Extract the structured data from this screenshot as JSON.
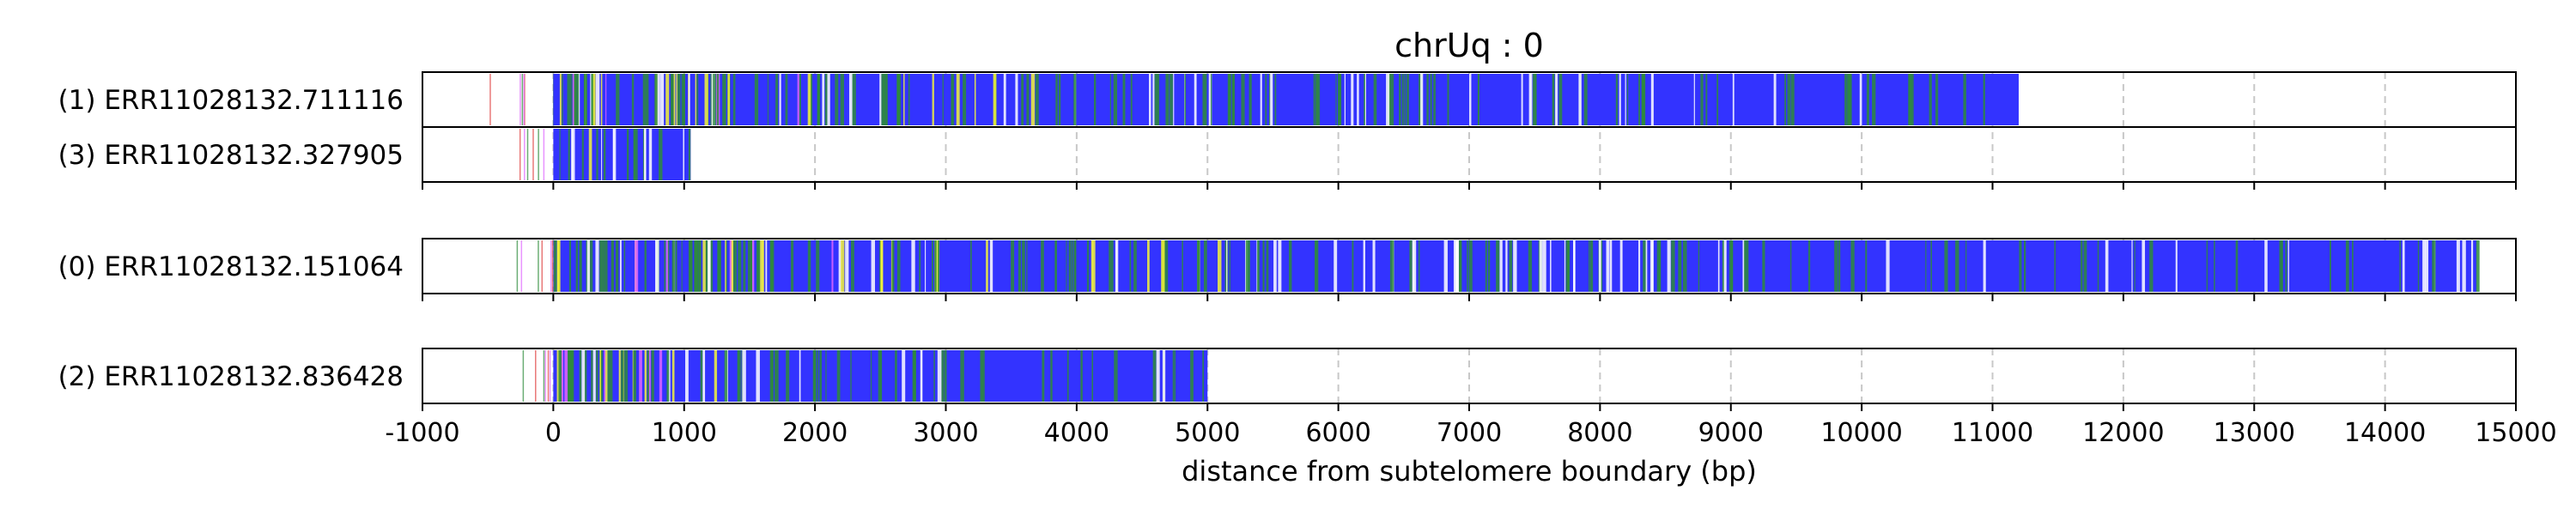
{
  "chart_data": {
    "type": "bar",
    "title": "chrUq : 0",
    "xlabel": "distance from subtelomere boundary (bp)",
    "ylabel": "",
    "xlim": [
      -1000,
      15000
    ],
    "xticks": [
      -1000,
      0,
      1000,
      2000,
      3000,
      4000,
      5000,
      6000,
      7000,
      8000,
      9000,
      10000,
      11000,
      12000,
      13000,
      14000,
      15000
    ],
    "xtick_labels": [
      "-1000",
      "0",
      "1000",
      "2000",
      "3000",
      "4000",
      "5000",
      "6000",
      "7000",
      "8000",
      "9000",
      "10000",
      "11000",
      "12000",
      "13000",
      "14000",
      "15000"
    ],
    "grid": "vertical dashed",
    "colors": {
      "repeat": "#3333ff",
      "variant_green": "#2e8b3a",
      "variant_yellow": "#f5f53a",
      "variant_magenta": "#e066ff",
      "variant_red": "#e04040",
      "grid": "#c8c8c8",
      "frame": "#000000"
    },
    "reads": [
      {
        "label": "(1) ERR11028132.711116",
        "start": -700,
        "repeat_start": 0,
        "end": 11200,
        "group": 0
      },
      {
        "label": "(3) ERR11028132.327905",
        "start": -300,
        "repeat_start": 0,
        "end": 1050,
        "group": 0
      },
      {
        "label": "(0) ERR11028132.151064",
        "start": -300,
        "repeat_start": 0,
        "end": 14700,
        "group": 1
      },
      {
        "label": "(2) ERR11028132.836428",
        "start": -250,
        "repeat_start": 0,
        "end": 5000,
        "group": 2
      }
    ]
  }
}
